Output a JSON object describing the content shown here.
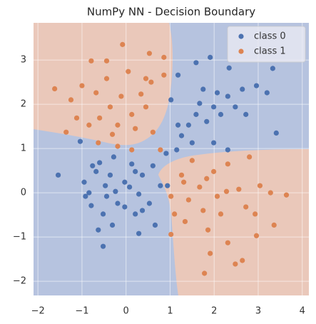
{
  "chart_data": {
    "type": "scatter",
    "title": "NumPy NN - Decision Boundary",
    "xlim": [
      -2.1,
      4.15
    ],
    "ylim": [
      -2.32,
      3.84
    ],
    "xticks": [
      {
        "value": -2,
        "label": "−2"
      },
      {
        "value": -1,
        "label": "−1"
      },
      0,
      1,
      2,
      3,
      4
    ],
    "yticks": [
      {
        "value": -2,
        "label": "−2"
      },
      {
        "value": -1,
        "label": "−1"
      },
      0,
      1,
      2,
      3
    ],
    "grid": true,
    "legend": "upper right",
    "series": [
      {
        "name": "class 0",
        "color": "#4c72b0",
        "x": [
          -1.54,
          -1.04,
          -0.95,
          -0.79,
          -0.68,
          -0.76,
          -0.6,
          -0.47,
          -0.36,
          -0.28,
          -0.24,
          -0.44,
          -0.52,
          -0.63,
          -0.31,
          -0.52,
          -0.03,
          0.08,
          0.21,
          0.29,
          0.37,
          0.21,
          0.29,
          0.53,
          0.66,
          0.78,
          0.61,
          0.91,
          1.15,
          1.26,
          1.42,
          1.59,
          1.67,
          1.83,
          1.99,
          2.07,
          2.15,
          2.31,
          2.48,
          2.64,
          2.72,
          2.34,
          2.96,
          3.2,
          3.33,
          3.41,
          1.91,
          1.59,
          1.02,
          1.18,
          1.5,
          1.99,
          -0.03,
          -0.19,
          0.13,
          0.37,
          -0.84,
          -0.92,
          1.18,
          1.75,
          2.31,
          0.94
        ],
        "values": [
          0.4,
          1.16,
          0.24,
          -0.29,
          0.48,
          0.61,
          0.68,
          0.16,
          0.4,
          0.81,
          0.03,
          -0.08,
          -0.48,
          -0.84,
          -0.73,
          -1.21,
          0.24,
          0.13,
          0.48,
          -0.03,
          -0.4,
          -0.48,
          -0.92,
          -0.24,
          -0.73,
          0.16,
          0.61,
          0.89,
          0.97,
          1.29,
          1.53,
          1.77,
          2.02,
          1.61,
          1.94,
          2.26,
          1.77,
          2.18,
          1.94,
          2.34,
          1.77,
          2.82,
          2.42,
          2.26,
          2.81,
          1.35,
          3.06,
          2.94,
          2.1,
          2.66,
          1.13,
          1.13,
          -0.32,
          -0.24,
          0.65,
          0.4,
          0.0,
          -0.08,
          1.53,
          2.34,
          0.97,
          0.16
        ]
      },
      {
        "name": "class 1",
        "color": "#dd8452",
        "x": [
          -1.62,
          -1.36,
          -1.25,
          -1.12,
          -1.0,
          -0.79,
          -0.68,
          -0.63,
          -0.44,
          -0.44,
          -0.36,
          -0.31,
          -0.19,
          -0.08,
          -0.11,
          0.05,
          0.13,
          0.21,
          0.34,
          0.45,
          0.53,
          0.57,
          0.61,
          0.45,
          -0.6,
          -0.84,
          0.86,
          0.86,
          0.13,
          -0.19,
          1.02,
          1.1,
          1.02,
          1.26,
          1.34,
          1.42,
          1.5,
          1.67,
          1.75,
          1.83,
          1.86,
          1.91,
          1.78,
          1.99,
          2.07,
          2.15,
          2.28,
          2.31,
          2.48,
          2.64,
          2.56,
          2.72,
          2.8,
          2.93,
          3.04,
          3.28,
          3.64,
          3.36,
          2.96,
          2.31,
          0.78,
          1.31
        ],
        "values": [
          2.35,
          1.37,
          2.1,
          1.69,
          2.42,
          2.98,
          2.26,
          1.13,
          2.98,
          2.58,
          1.94,
          1.32,
          1.53,
          3.35,
          2.18,
          2.74,
          1.77,
          1.45,
          2.23,
          1.94,
          3.15,
          2.5,
          1.37,
          2.58,
          1.69,
          1.53,
          3.06,
          2.66,
          0.97,
          1.05,
          -0.08,
          -0.48,
          -0.94,
          0.4,
          -0.65,
          -0.16,
          0.73,
          0.13,
          -0.4,
          0.32,
          -0.84,
          -1.37,
          -1.82,
          0.48,
          -0.08,
          -0.48,
          0.03,
          -1.13,
          -1.61,
          -1.53,
          0.08,
          -0.32,
          0.81,
          -0.48,
          0.16,
          0.0,
          -0.05,
          -0.73,
          -0.97,
          0.65,
          0.97,
          0.24
        ]
      }
    ]
  }
}
